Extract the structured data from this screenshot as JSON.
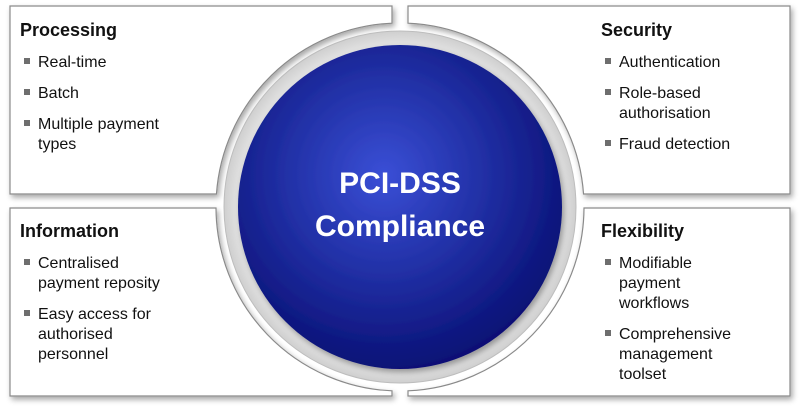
{
  "colors": {
    "circle_center": "#3a4fd6",
    "circle_edge": "#050c6e",
    "ring": "#e6e6e6",
    "quadrant_fill": "#ffffff",
    "quadrant_border": "#8a8a8a",
    "text": "#111111",
    "bullet": "#6e6e6e"
  },
  "center": {
    "line1": "PCI-DSS",
    "line2": "Compliance"
  },
  "quadrants": {
    "processing": {
      "title": "Processing",
      "items": [
        {
          "lines": [
            "Real-time"
          ]
        },
        {
          "lines": [
            "Batch"
          ]
        },
        {
          "lines": [
            "Multiple payment",
            "types"
          ]
        }
      ]
    },
    "security": {
      "title": "Security",
      "items": [
        {
          "lines": [
            "Authentication"
          ]
        },
        {
          "lines": [
            "Role-based",
            "authorisation"
          ]
        },
        {
          "lines": [
            "Fraud detection"
          ]
        }
      ]
    },
    "information": {
      "title": "Information",
      "items": [
        {
          "lines": [
            "Centralised",
            "payment reposity"
          ]
        },
        {
          "lines": [
            "Easy access for",
            "authorised",
            "personnel"
          ]
        }
      ]
    },
    "flexibility": {
      "title": "Flexibility",
      "items": [
        {
          "lines": [
            "Modifiable",
            "payment",
            "workflows"
          ]
        },
        {
          "lines": [
            "Comprehensive",
            "management",
            "toolset"
          ]
        }
      ]
    }
  }
}
